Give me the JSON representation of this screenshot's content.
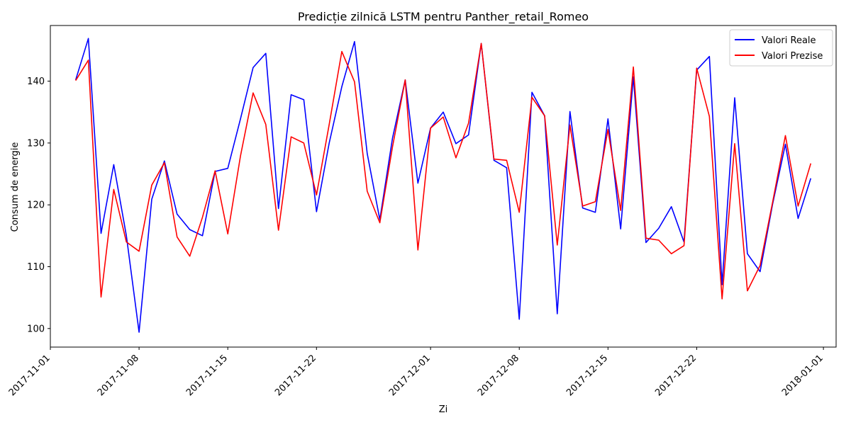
{
  "chart_data": {
    "type": "line",
    "title": "Predicție zilnică LSTM pentru Panther_retail_Romeo",
    "xlabel": "Zi",
    "ylabel": "Consum de energie",
    "x_start": "2017-11-03",
    "xlim": [
      "2017-11-01",
      "2018-01-02"
    ],
    "ylim": [
      97,
      149
    ],
    "x_ticks": [
      "2017-11-01",
      "2017-11-08",
      "2017-11-15",
      "2017-11-22",
      "2017-12-01",
      "2017-12-08",
      "2017-12-15",
      "2017-12-22",
      "2018-01-01"
    ],
    "y_ticks": [
      100,
      110,
      120,
      130,
      140
    ],
    "grid": false,
    "legend": "top-right",
    "series": [
      {
        "name": "Valori Reale",
        "color": "#0000ff",
        "values": [
          140.2,
          146.9,
          115.4,
          126.5,
          115.0,
          99.4,
          120.9,
          127.1,
          118.5,
          116.0,
          115.0,
          125.4,
          125.9,
          133.9,
          142.2,
          144.5,
          119.4,
          137.8,
          137.0,
          118.9,
          130.0,
          139.1,
          146.4,
          128.3,
          117.6,
          130.8,
          140.2,
          123.5,
          132.4,
          135.0,
          129.9,
          131.3,
          146.1,
          127.2,
          126.0,
          101.5,
          138.2,
          134.4,
          102.4,
          135.1,
          119.5,
          118.8,
          133.9,
          116.1,
          140.7,
          113.9,
          116.2,
          119.7,
          114.0,
          141.8,
          144.0,
          107.1,
          137.3,
          112.1,
          109.2,
          120.2,
          129.8,
          117.8,
          124.3
        ]
      },
      {
        "name": "Valori Prezise",
        "color": "#ff0000",
        "values": [
          140.1,
          143.4,
          105.1,
          122.5,
          114.0,
          112.5,
          123.2,
          126.8,
          114.8,
          111.7,
          118.0,
          125.5,
          115.3,
          127.9,
          138.1,
          133.0,
          115.9,
          131.0,
          130.0,
          121.6,
          133.0,
          144.8,
          139.9,
          122.2,
          117.1,
          129.4,
          140.2,
          112.7,
          132.4,
          134.2,
          127.6,
          133.2,
          146.1,
          127.4,
          127.2,
          118.8,
          137.4,
          134.4,
          113.5,
          132.9,
          119.8,
          120.5,
          132.2,
          119.1,
          142.3,
          114.6,
          114.3,
          112.1,
          113.4,
          142.1,
          134.3,
          104.8,
          129.9,
          106.1,
          110.2,
          120.5,
          131.2,
          119.8,
          126.7
        ]
      }
    ]
  }
}
